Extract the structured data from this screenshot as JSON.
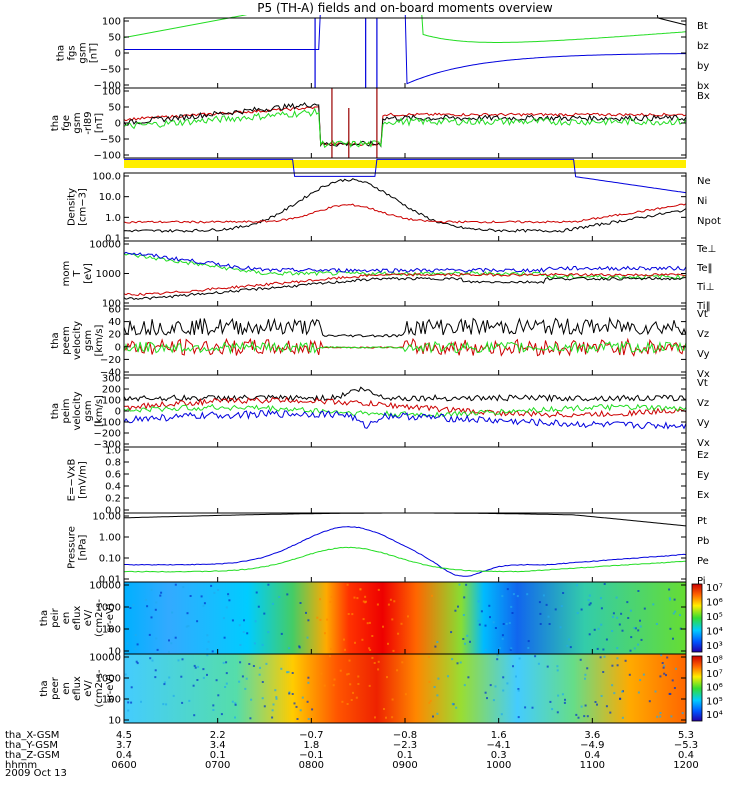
{
  "figure": {
    "title": "P5 (TH-A) fields and on-board moments overview",
    "date": "2009 Oct 13",
    "colors": {
      "black": "#000000",
      "red": "#cc0000",
      "green": "#22dd22",
      "blue": "#0000dd",
      "yellow": "#ffee00"
    }
  },
  "chart_data": [
    {
      "type": "line",
      "id": "fgs",
      "ylabel": [
        "tha",
        "fgs",
        "gsm",
        "[nT]"
      ],
      "ylim": [
        -100,
        100
      ],
      "yticks": [
        "100",
        "50",
        "0",
        "−50",
        "−100"
      ],
      "legend": [
        {
          "name": "Bt",
          "color": "black"
        },
        {
          "name": "bz",
          "color": "red"
        },
        {
          "name": "by",
          "color": "green"
        },
        {
          "name": "bx",
          "color": "blue"
        }
      ]
    },
    {
      "type": "line",
      "id": "fge",
      "ylabel": [
        "tha",
        "fge",
        "gsm",
        "-rl89",
        "[nT]"
      ],
      "ylim": [
        -130,
        100
      ],
      "yticks": [
        "100",
        "50",
        "0",
        "−50",
        "−100"
      ],
      "legend": [
        {
          "name": "Bx",
          "color": "red"
        }
      ]
    },
    {
      "type": "line",
      "id": "density",
      "scale": "log",
      "ylabel": [
        "Density",
        "[cm−3]"
      ],
      "ylim": [
        0.1,
        100
      ],
      "yticks": [
        "100.0",
        "10.0",
        "1.0",
        "0.1"
      ],
      "legend": [
        {
          "name": "Ne",
          "color": "red"
        },
        {
          "name": "Ni",
          "color": "black"
        },
        {
          "name": "Npot",
          "color": "blue"
        }
      ]
    },
    {
      "type": "line",
      "id": "temperature",
      "scale": "log",
      "ylabel": [
        "mom",
        "T",
        "[eV]"
      ],
      "ylim": [
        20,
        10000
      ],
      "yticks": [
        "10000",
        "1000",
        "100"
      ],
      "legend": [
        {
          "name": "Te⊥",
          "color": "red"
        },
        {
          "name": "Te‖",
          "color": "black"
        },
        {
          "name": "Ti⊥",
          "color": "red"
        },
        {
          "name": "Ti‖",
          "color": "green"
        }
      ]
    },
    {
      "type": "line",
      "id": "peem-velocity",
      "ylabel": [
        "tha",
        "peem",
        "velocity",
        "gsm",
        "[km/s]"
      ],
      "ylim": [
        -40,
        60
      ],
      "yticks": [
        "60",
        "40",
        "20",
        "0",
        "−20",
        "−40"
      ],
      "legend": [
        {
          "name": "Vt",
          "color": "black"
        },
        {
          "name": "Vz",
          "color": "red"
        },
        {
          "name": "Vy",
          "color": "green"
        },
        {
          "name": "Vx",
          "color": "blue"
        }
      ]
    },
    {
      "type": "line",
      "id": "peim-velocity",
      "ylabel": [
        "tha",
        "peim",
        "velocity",
        "gsm",
        "[km/s]"
      ],
      "ylim": [
        -300,
        300
      ],
      "yticks": [
        "300",
        "200",
        "100",
        "0",
        "−100",
        "−200",
        "−300"
      ],
      "legend": [
        {
          "name": "Vt",
          "color": "black"
        },
        {
          "name": "Vz",
          "color": "red"
        },
        {
          "name": "Vy",
          "color": "green"
        },
        {
          "name": "Vx",
          "color": "blue"
        }
      ]
    },
    {
      "type": "line",
      "id": "efield",
      "ylabel": [
        "E=−VxB",
        "[mV/m]"
      ],
      "ylim": [
        0,
        1
      ],
      "yticks": [
        "1.0",
        "0.8",
        "0.6",
        "0.4",
        "0.2",
        "0.0"
      ],
      "legend": [
        {
          "name": "Ez",
          "color": "red"
        },
        {
          "name": "Ey",
          "color": "green"
        },
        {
          "name": "Ex",
          "color": "blue"
        }
      ]
    },
    {
      "type": "line",
      "id": "pressure",
      "scale": "log",
      "ylabel": [
        "Pressure",
        "[nPa]"
      ],
      "ylim": [
        0.005,
        10
      ],
      "yticks": [
        "10.00",
        "1.00",
        "0.10",
        "0.01"
      ],
      "legend": [
        {
          "name": "Pt",
          "color": "black"
        },
        {
          "name": "Pb",
          "color": "red"
        },
        {
          "name": "Pe",
          "color": "green"
        },
        {
          "name": "Pi",
          "color": "blue"
        }
      ]
    },
    {
      "type": "heatmap",
      "id": "peir-spectrum",
      "ylabel": [
        "tha",
        "peir",
        "en",
        "eflux",
        "eV/",
        "(cm2-s-",
        "sr-eV)"
      ],
      "yticks": [
        "10000",
        "1000",
        "100",
        "10"
      ],
      "colorbar": [
        "10⁷",
        "10⁶",
        "10⁵",
        "10⁴",
        "10³"
      ]
    },
    {
      "type": "heatmap",
      "id": "peer-spectrum",
      "ylabel": [
        "tha",
        "peer",
        "en",
        "eflux",
        "eV/",
        "(cm2-s-",
        "sr-eV)"
      ],
      "yticks": [
        "10000",
        "1000",
        "100",
        "10"
      ],
      "colorbar": [
        "10⁸",
        "10⁷",
        "10⁶",
        "10⁵",
        "10⁴"
      ]
    }
  ],
  "ephemeris": [
    {
      "label": "tha_X-GSM",
      "values": [
        "4.5",
        "2.2",
        "−0.7",
        "−0.8",
        "1.6",
        "3.6",
        "5.3"
      ]
    },
    {
      "label": "tha_Y-GSM",
      "values": [
        "3.7",
        "3.4",
        "1.8",
        "−2.3",
        "−4.1",
        "−4.9",
        "−5.3"
      ]
    },
    {
      "label": "tha_Z-GSM",
      "values": [
        "0.4",
        "0.1",
        "−0.1",
        "0.1",
        "0.3",
        "0.4",
        "0.4"
      ]
    },
    {
      "label": "hhmm",
      "values": [
        "0600",
        "0700",
        "0800",
        "0900",
        "1000",
        "1100",
        "1200"
      ]
    }
  ]
}
